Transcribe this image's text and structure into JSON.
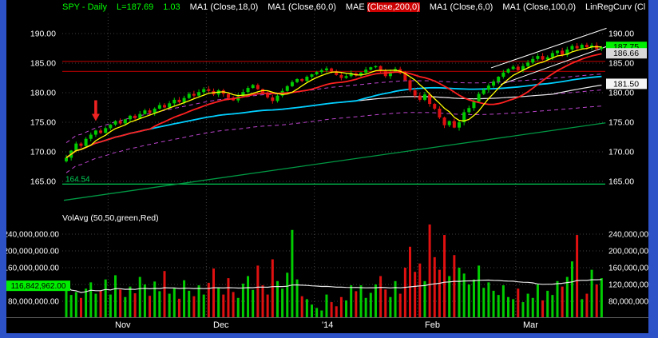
{
  "colors": {
    "frame": "#2d52c8",
    "bg": "#000000",
    "grid": "#3f3f3f",
    "up": "#00cc00",
    "down": "#e01010",
    "ma6": "#ffff00",
    "ma18": "#ff2020",
    "ma60": "#00cfff",
    "ma100": "#e8e8e8",
    "mae": "#bb44cc",
    "trend_green": "#009944",
    "support_green": "#00cc55",
    "alert_red": "#990000",
    "channel_white": "#ffffff",
    "vol_avg_line": "#e8e8e8"
  },
  "header": {
    "symbol": "SPY - Daily",
    "last": "L=187.69",
    "change": "1.03",
    "indicators": [
      {
        "name": "MA1",
        "params": "(Close,18,0)",
        "highlight": false
      },
      {
        "name": "MA1",
        "params": "(Close,60,0)",
        "highlight": false
      },
      {
        "name": "MAE",
        "params": "(Close,200,0)",
        "highlight": true
      },
      {
        "name": "MA1",
        "params": "(Close,6,0)",
        "highlight": false
      },
      {
        "name": "MA1",
        "params": "(Close,100,0)",
        "highlight": false
      },
      {
        "name": "LinRegCurv",
        "params": "(Cl",
        "highlight": false
      }
    ]
  },
  "price_axis": {
    "ticks": [
      {
        "value": 190,
        "label": "190.00"
      },
      {
        "value": 185,
        "label": "185.00"
      },
      {
        "value": 180,
        "label": "180.00"
      },
      {
        "value": 175,
        "label": "175.00"
      },
      {
        "value": 170,
        "label": "170.00"
      },
      {
        "value": 165,
        "label": "165.00"
      }
    ],
    "bubbles": [
      {
        "value": 187.75,
        "label": "187.75",
        "bg": "#00ee00",
        "fg": "#000000"
      },
      {
        "value": 186.66,
        "label": "186.66",
        "bg": "#d8d8d8",
        "fg": "#000000"
      },
      {
        "value": 181.5,
        "label": "181.50",
        "bg": "#f5f5f5",
        "fg": "#000000"
      }
    ]
  },
  "volume_axis": {
    "ticks": [
      {
        "value": 240,
        "label": "240,000,000.00"
      },
      {
        "value": 200,
        "label": "200,000,000.00"
      },
      {
        "value": 160,
        "label": "160,000,000.00"
      },
      {
        "value": 120,
        "label": "120,000,000.00"
      },
      {
        "value": 80,
        "label": "80,000,000.00"
      }
    ],
    "avg_bubble": {
      "value_millions": 116.842962,
      "label": "116,842,962.00",
      "bg": "#00ee00",
      "fg": "#000000"
    }
  },
  "volume_pane": {
    "title": "VolAvg (50,50,green,Red)"
  },
  "time_axis": {
    "months": [
      {
        "label": "Nov",
        "bar": 9
      },
      {
        "label": "Dec",
        "bar": 29
      },
      {
        "label": "'14",
        "bar": 51
      },
      {
        "label": "Feb",
        "bar": 72
      },
      {
        "label": "Mar",
        "bar": 92
      }
    ]
  },
  "chart_data": {
    "type": "candlestick",
    "symbol": "SPY",
    "timeframe": "Daily",
    "last": 187.69,
    "change": 1.03,
    "price_axis_range": [
      165,
      190
    ],
    "volume_axis_range_millions": [
      80,
      240
    ],
    "first_open": 168.4,
    "closes": [
      169.0,
      170.2,
      171.4,
      171.0,
      172.2,
      172.9,
      173.6,
      173.2,
      174.0,
      174.6,
      175.2,
      174.8,
      175.5,
      176.1,
      175.7,
      176.4,
      177.0,
      176.6,
      177.3,
      177.9,
      177.5,
      178.2,
      178.8,
      178.4,
      179.1,
      179.8,
      179.5,
      180.1,
      180.6,
      180.3,
      179.7,
      180.4,
      179.8,
      179.1,
      178.7,
      179.4,
      180.1,
      180.8,
      181.3,
      180.6,
      180.0,
      179.2,
      178.6,
      179.5,
      180.3,
      181.1,
      181.8,
      182.3,
      182.0,
      182.7,
      183.1,
      183.5,
      183.8,
      184.1,
      183.6,
      183.0,
      182.5,
      182.8,
      183.3,
      182.9,
      183.4,
      183.9,
      184.3,
      184.5,
      183.7,
      182.8,
      183.5,
      184.0,
      183.3,
      182.1,
      180.4,
      179.5,
      178.8,
      179.7,
      178.1,
      177.3,
      175.8,
      174.5,
      175.2,
      174.1,
      175.0,
      176.7,
      177.4,
      178.5,
      179.8,
      180.5,
      181.2,
      181.9,
      182.7,
      183.4,
      184.0,
      184.4,
      183.8,
      184.5,
      185.1,
      185.7,
      186.2,
      185.6,
      186.0,
      186.7,
      187.1,
      186.4,
      187.3,
      187.9,
      187.5,
      188.1,
      187.7,
      188.0,
      187.4,
      187.69
    ],
    "volumes_millions": [
      118,
      95,
      102,
      88,
      110,
      125,
      98,
      105,
      132,
      96,
      142,
      108,
      90,
      115,
      99,
      138,
      120,
      93,
      127,
      104,
      152,
      98,
      112,
      86,
      130,
      105,
      92,
      118,
      96,
      124,
      158,
      112,
      96,
      135,
      102,
      88,
      122,
      140,
      107,
      165,
      118,
      96,
      180,
      128,
      110,
      148,
      250,
      132,
      92,
      85,
      72,
      64,
      58,
      96,
      78,
      68,
      90,
      82,
      118,
      104,
      118,
      88,
      100,
      120,
      140,
      108,
      90,
      128,
      98,
      160,
      210,
      150,
      170,
      128,
      263,
      185,
      155,
      238,
      140,
      190,
      160,
      146,
      120,
      132,
      165,
      112,
      125,
      105,
      95,
      118,
      90,
      85,
      110,
      78,
      98,
      88,
      120,
      82,
      105,
      95,
      128,
      115,
      138,
      175,
      238,
      85,
      98,
      155,
      120,
      135
    ],
    "moving_averages": [
      {
        "name": "MAE200",
        "period": 200,
        "color_key": "mae",
        "envelope_pct": 1.5,
        "dashed": true,
        "width": 1,
        "front": false
      },
      {
        "name": "MA100",
        "period": 100,
        "color_key": "ma100",
        "width": 1.2,
        "front": false
      },
      {
        "name": "MA60",
        "period": 60,
        "color_key": "ma60",
        "width": 1.8,
        "front": false
      },
      {
        "name": "MA18",
        "period": 18,
        "color_key": "ma18",
        "width": 1.8,
        "front": true
      },
      {
        "name": "MA6",
        "period": 6,
        "color_key": "ma6",
        "width": 1.3,
        "front": true
      }
    ],
    "volume_avg_period": 50,
    "annotations": {
      "support_line": {
        "value": 164.54,
        "label": "164.54"
      },
      "alert_lines": [
        185.3,
        183.6
      ],
      "trend_line": {
        "bar1": -0.5,
        "price1": 161.8,
        "bar2": 109.8,
        "price2": 174.9
      },
      "channels": [
        {
          "bar1": 86.5,
          "price1": 184.2,
          "bar2": 110,
          "price2": 190.9
        },
        {
          "bar1": 88.5,
          "price1": 181.4,
          "bar2": 110,
          "price2": 187.8
        }
      ],
      "arrow": {
        "bar": 6,
        "tip_price": 175.2
      }
    }
  }
}
